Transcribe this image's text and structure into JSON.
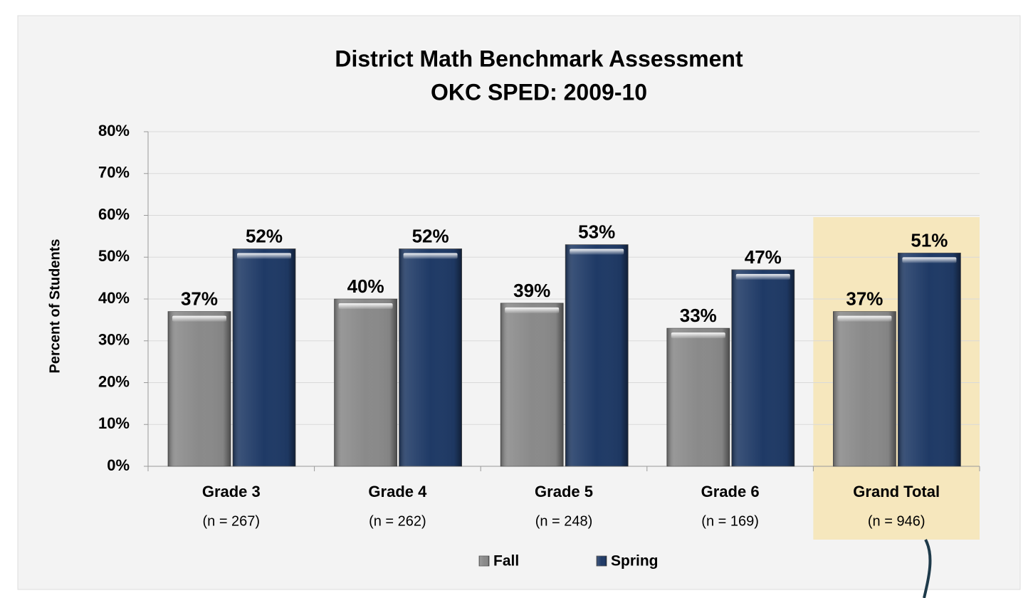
{
  "chart_data": {
    "type": "bar",
    "title": "District Math Benchmark Assessment",
    "subtitle": "OKC SPED: 2009-10",
    "y_label": "Percent of Students",
    "categories": [
      "Grade 3",
      "Grade 4",
      "Grade 5",
      "Grade 6",
      "Grand Total"
    ],
    "category_notes": [
      "(n = 267)",
      "(n = 262)",
      "(n = 248)",
      "(n = 169)",
      "(n = 946)"
    ],
    "series": [
      {
        "name": "Fall",
        "color": "#8a8a8a",
        "values": [
          37,
          40,
          39,
          33,
          37
        ],
        "value_labels": [
          "37%",
          "40%",
          "39%",
          "33%",
          "37%"
        ]
      },
      {
        "name": "Spring",
        "color": "#1f3a66",
        "values": [
          52,
          52,
          53,
          47,
          51
        ],
        "value_labels": [
          "52%",
          "52%",
          "53%",
          "47%",
          "51%"
        ]
      }
    ],
    "ylim": [
      0,
      80
    ],
    "yticks": [
      {
        "value": 0,
        "label": "0%"
      },
      {
        "value": 10,
        "label": "10%"
      },
      {
        "value": 20,
        "label": "20%"
      },
      {
        "value": 30,
        "label": "30%"
      },
      {
        "value": 40,
        "label": "40%"
      },
      {
        "value": 50,
        "label": "50%"
      },
      {
        "value": 60,
        "label": "60%"
      },
      {
        "value": 70,
        "label": "70%"
      },
      {
        "value": 80,
        "label": "80%"
      }
    ],
    "grid": true,
    "legend": "bottom",
    "highlight_category": 4,
    "highlight_color": "#f6e7bd"
  }
}
